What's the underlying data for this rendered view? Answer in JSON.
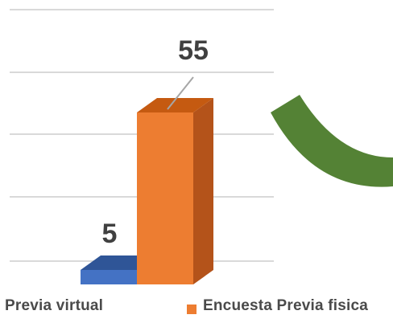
{
  "colors": {
    "virtual_front": "#4472C4",
    "virtual_top": "#2F5597",
    "fisica_front": "#ED7D31",
    "fisica_top": "#C55A11",
    "fisica_side": "#B4531A",
    "gridline": "#D9D9D9",
    "arrow": "#548235",
    "label_text": "#404040",
    "leader_line": "#A6A6A6"
  },
  "legend": {
    "virtual_label": "Previa virtual",
    "fisica_label": "Encuesta Previa fisica"
  },
  "chart_data": {
    "type": "bar",
    "categories": [
      ""
    ],
    "series": [
      {
        "name": "Previa virtual",
        "values": [
          5
        ],
        "label": "5"
      },
      {
        "name": "Encuesta Previa fisica",
        "values": [
          55
        ],
        "label": "55"
      }
    ],
    "ylim": [
      0,
      70
    ],
    "grid": true,
    "legend_position": "bottom"
  },
  "decoration": {
    "arrow_icon": "curved-arrow-icon"
  }
}
